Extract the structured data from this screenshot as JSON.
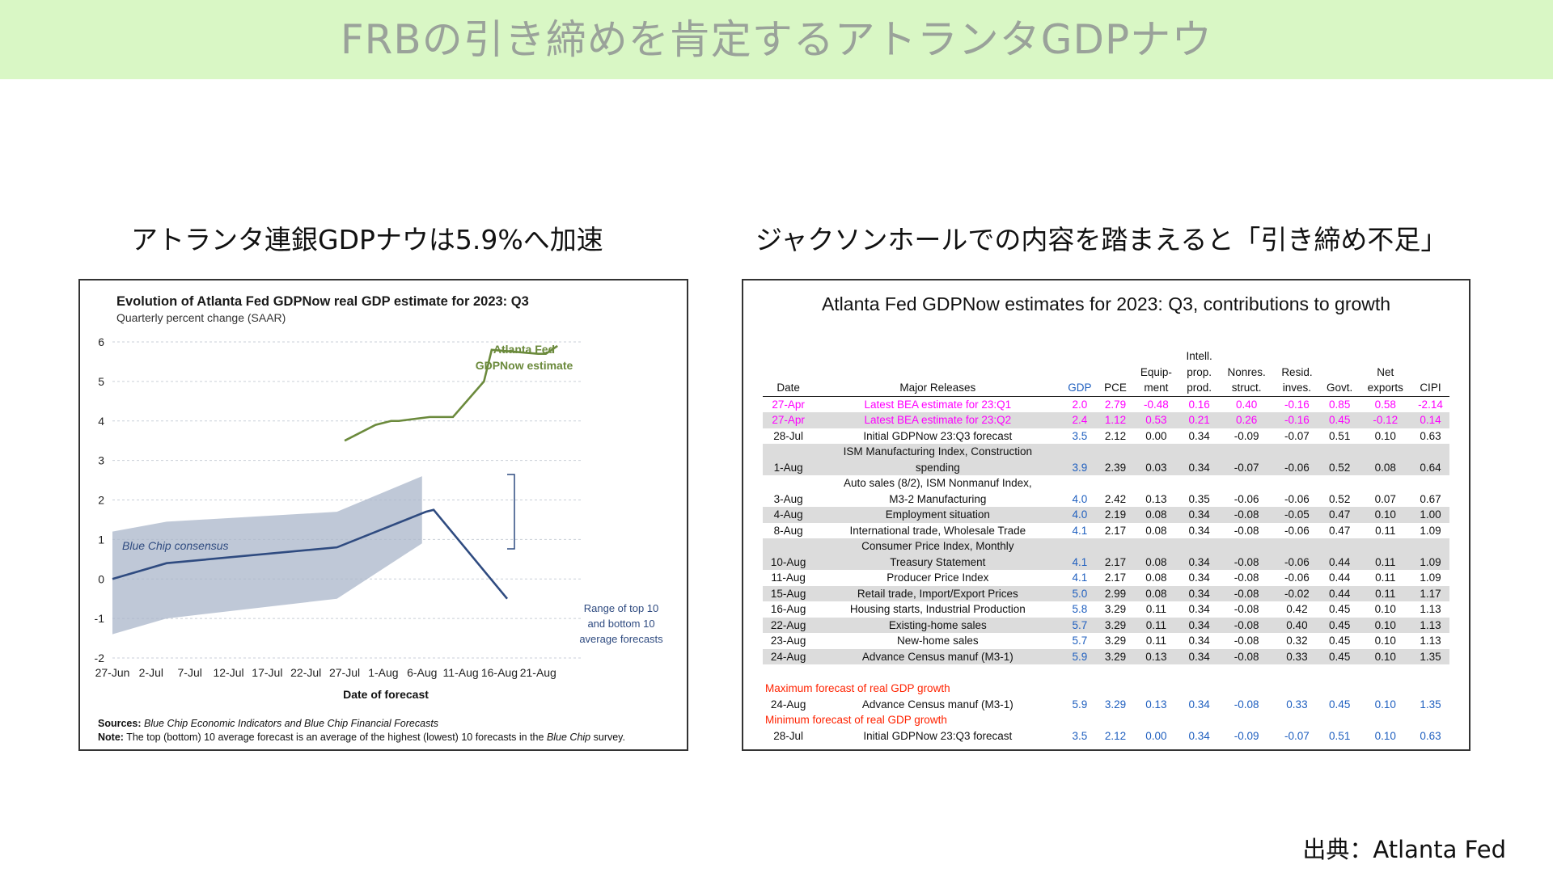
{
  "banner": {
    "title": "FRBの引き締めを肯定するアトランタGDPナウ"
  },
  "subtitles": {
    "left": "アトランタ連銀GDPナウは5.9%へ加速",
    "right": "ジャクソンホールでの内容を踏まえると「引き締め不足」"
  },
  "left_chart": {
    "title": "Evolution of Atlanta Fed GDPNow real GDP estimate for 2023: Q3",
    "subtitle": "Quarterly percent change (SAAR)",
    "xlabel": "Date of forecast",
    "source_label": "Sources:",
    "source_text": "Blue Chip Economic Indicators and Blue Chip Financial Forecasts",
    "note_label": "Note:",
    "note_text_1": "The top (bottom) 10 average forecast is an average of the highest (lowest) 10 forecasts in the ",
    "note_text_italic": "Blue Chip",
    "note_text_2": " survey.",
    "annotations": {
      "gdpnow_line1": "Atlanta Fed",
      "gdpnow_line2": "GDPNow estimate",
      "bluechip": "Blue Chip consensus",
      "range_line1": "Range of top 10",
      "range_line2": "and bottom 10",
      "range_line3": "average forecasts"
    }
  },
  "chart_data": {
    "type": "line",
    "title": "Evolution of Atlanta Fed GDPNow real GDP estimate for 2023: Q3",
    "subtitle": "Quarterly percent change (SAAR)",
    "xlabel": "Date of forecast",
    "ylabel": "",
    "x_ticks": [
      "27-Jun",
      "2-Jul",
      "7-Jul",
      "12-Jul",
      "17-Jul",
      "22-Jul",
      "27-Jul",
      "1-Aug",
      "6-Aug",
      "11-Aug",
      "16-Aug",
      "21-Aug"
    ],
    "y_ticks": [
      -2,
      -1,
      0,
      1,
      2,
      3,
      4,
      5,
      6
    ],
    "ylim": [
      -2,
      6
    ],
    "x_day_range": [
      0,
      58
    ],
    "series": [
      {
        "name": "Atlanta Fed GDPNow estimate",
        "color": "#6b8a3c",
        "points": [
          [
            30,
            3.5
          ],
          [
            34,
            3.9
          ],
          [
            36,
            4.0
          ],
          [
            37,
            4.0
          ],
          [
            41,
            4.1
          ],
          [
            44,
            4.1
          ],
          [
            48,
            5.0
          ],
          [
            49,
            5.8
          ],
          [
            55,
            5.7
          ],
          [
            56,
            5.7
          ],
          [
            57.5,
            5.9
          ]
        ]
      },
      {
        "name": "Blue Chip consensus",
        "color": "#2f4b80",
        "points": [
          [
            0,
            0.0
          ],
          [
            7,
            0.4
          ],
          [
            29,
            0.8
          ],
          [
            40.5,
            1.7
          ],
          [
            41.5,
            1.75
          ],
          [
            51,
            -0.5
          ]
        ]
      }
    ],
    "range_band": {
      "color": "#a9b6c9",
      "upper": [
        [
          0,
          1.2
        ],
        [
          7,
          1.45
        ],
        [
          29,
          1.7
        ],
        [
          40,
          2.6
        ]
      ],
      "lower": [
        [
          40,
          0.9
        ],
        [
          29,
          -0.5
        ],
        [
          7,
          -1.0
        ],
        [
          0,
          -1.4
        ]
      ]
    }
  },
  "right_table": {
    "title": "Atlanta Fed GDPNow estimates for 2023: Q3, contributions to growth",
    "headers": [
      "Date",
      "Major Releases",
      "GDP",
      "PCE",
      "Equip-\nment",
      "Intell.\nprop.\nprod.",
      "Nonres.\nstruct.",
      "Resid.\ninves.",
      "Govt.",
      "Net\nexports",
      "CIPI"
    ],
    "rows": [
      {
        "date": "27-Apr",
        "release": "Latest BEA estimate for 23:Q1",
        "vals": [
          "2.0",
          "2.79",
          "-0.48",
          "0.16",
          "0.40",
          "-0.16",
          "0.85",
          "0.58",
          "-2.14"
        ],
        "style": "pink"
      },
      {
        "date": "27-Apr",
        "release": "Latest BEA estimate for 23:Q2",
        "vals": [
          "2.4",
          "1.12",
          "0.53",
          "0.21",
          "0.26",
          "-0.16",
          "0.45",
          "-0.12",
          "0.14"
        ],
        "style": "pink shade"
      },
      {
        "date": "28-Jul",
        "release": "Initial GDPNow 23:Q3 forecast",
        "vals": [
          "3.5",
          "2.12",
          "0.00",
          "0.34",
          "-0.09",
          "-0.07",
          "0.51",
          "0.10",
          "0.63"
        ],
        "style": ""
      },
      {
        "date": "1-Aug",
        "release": "ISM Manufacturing Index, Construction\nspending",
        "vals": [
          "3.9",
          "2.39",
          "0.03",
          "0.34",
          "-0.07",
          "-0.06",
          "0.52",
          "0.08",
          "0.64"
        ],
        "style": "shade tall"
      },
      {
        "date": "3-Aug",
        "release": "Auto sales (8/2), ISM Nonmanuf Index,\nM3-2 Manufacturing",
        "vals": [
          "4.0",
          "2.42",
          "0.13",
          "0.35",
          "-0.06",
          "-0.06",
          "0.52",
          "0.07",
          "0.67"
        ],
        "style": "tall"
      },
      {
        "date": "4-Aug",
        "release": "Employment situation",
        "vals": [
          "4.0",
          "2.19",
          "0.08",
          "0.34",
          "-0.08",
          "-0.05",
          "0.47",
          "0.10",
          "1.00"
        ],
        "style": "shade"
      },
      {
        "date": "8-Aug",
        "release": "International trade, Wholesale Trade",
        "vals": [
          "4.1",
          "2.17",
          "0.08",
          "0.34",
          "-0.08",
          "-0.06",
          "0.47",
          "0.11",
          "1.09"
        ],
        "style": ""
      },
      {
        "date": "10-Aug",
        "release": "Consumer Price Index, Monthly\nTreasury Statement",
        "vals": [
          "4.1",
          "2.17",
          "0.08",
          "0.34",
          "-0.08",
          "-0.06",
          "0.44",
          "0.11",
          "1.09"
        ],
        "style": "shade tall"
      },
      {
        "date": "11-Aug",
        "release": "Producer Price Index",
        "vals": [
          "4.1",
          "2.17",
          "0.08",
          "0.34",
          "-0.08",
          "-0.06",
          "0.44",
          "0.11",
          "1.09"
        ],
        "style": ""
      },
      {
        "date": "15-Aug",
        "release": "Retail trade, Import/Export Prices",
        "vals": [
          "5.0",
          "2.99",
          "0.08",
          "0.34",
          "-0.08",
          "-0.02",
          "0.44",
          "0.11",
          "1.17"
        ],
        "style": "shade"
      },
      {
        "date": "16-Aug",
        "release": "Housing starts, Industrial Production",
        "vals": [
          "5.8",
          "3.29",
          "0.11",
          "0.34",
          "-0.08",
          "0.42",
          "0.45",
          "0.10",
          "1.13"
        ],
        "style": ""
      },
      {
        "date": "22-Aug",
        "release": "Existing-home sales",
        "vals": [
          "5.7",
          "3.29",
          "0.11",
          "0.34",
          "-0.08",
          "0.40",
          "0.45",
          "0.10",
          "1.13"
        ],
        "style": "shade"
      },
      {
        "date": "23-Aug",
        "release": "New-home sales",
        "vals": [
          "5.7",
          "3.29",
          "0.11",
          "0.34",
          "-0.08",
          "0.32",
          "0.45",
          "0.10",
          "1.13"
        ],
        "style": ""
      },
      {
        "date": "24-Aug",
        "release": "Advance Census manuf (M3-1)",
        "vals": [
          "5.9",
          "3.29",
          "0.13",
          "0.34",
          "-0.08",
          "0.33",
          "0.45",
          "0.10",
          "1.35"
        ],
        "style": "shade"
      }
    ],
    "max_label": "Maximum forecast of real GDP growth",
    "max_row": {
      "date": "24-Aug",
      "release": "Advance Census manuf (M3-1)",
      "vals": [
        "5.9",
        "3.29",
        "0.13",
        "0.34",
        "-0.08",
        "0.33",
        "0.45",
        "0.10",
        "1.35"
      ]
    },
    "min_label": "Minimum forecast of real GDP growth",
    "min_row": {
      "date": "28-Jul",
      "release": "Initial GDPNow 23:Q3 forecast",
      "vals": [
        "3.5",
        "2.12",
        "0.00",
        "0.34",
        "-0.09",
        "-0.07",
        "0.51",
        "0.10",
        "0.63"
      ]
    }
  },
  "credit": "出典：Atlanta Fed"
}
